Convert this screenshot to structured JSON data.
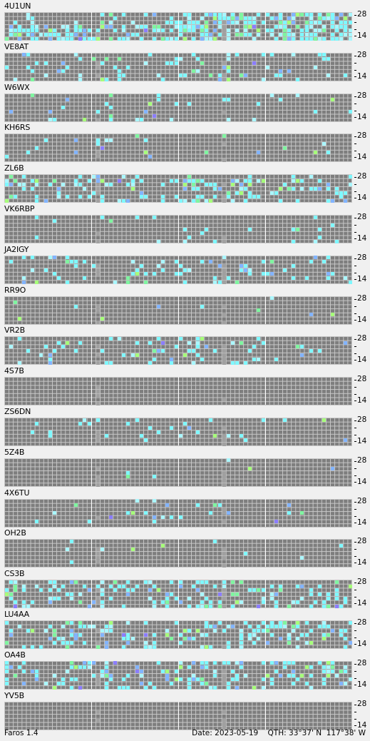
{
  "app": {
    "name": "Faros 1.4"
  },
  "status": {
    "date_label": "Date:",
    "date": "2023-05-19",
    "qth_label": "QTH:",
    "qth": "33°37' N  117°38' W"
  },
  "axis": {
    "top_label": "28",
    "bottom_label": "14"
  },
  "colors": {
    "background": "#f0f0f0",
    "grid": "#7e7e7e",
    "gridline": "#c9c9c9",
    "hour_line": "#ffffff",
    "marker": "#a0a0a0",
    "cyan": "#7ff8ff",
    "light_cyan": "#aaf7ff",
    "blue": "#82b4ff",
    "green": "#7ff5a0",
    "lime": "#a6ff7a",
    "violet": "#8b7dff"
  },
  "stations": [
    {
      "call": "4U1UN",
      "activity": "very-high"
    },
    {
      "call": "VE8AT",
      "activity": "medium"
    },
    {
      "call": "W6WX",
      "activity": "low"
    },
    {
      "call": "KH6RS",
      "activity": "low"
    },
    {
      "call": "ZL6B",
      "activity": "high"
    },
    {
      "call": "VK6RBP",
      "activity": "low"
    },
    {
      "call": "JA2IGY",
      "activity": "medium"
    },
    {
      "call": "RR9O",
      "activity": "very-low"
    },
    {
      "call": "VR2B",
      "activity": "medium"
    },
    {
      "call": "4S7B",
      "activity": "none"
    },
    {
      "call": "ZS6DN",
      "activity": "low"
    },
    {
      "call": "5Z4B",
      "activity": "very-low"
    },
    {
      "call": "4X6TU",
      "activity": "low"
    },
    {
      "call": "OH2B",
      "activity": "very-low"
    },
    {
      "call": "CS3B",
      "activity": "high"
    },
    {
      "call": "LU4AA",
      "activity": "high"
    },
    {
      "call": "OA4B",
      "activity": "high"
    },
    {
      "call": "YV5B",
      "activity": "none"
    }
  ]
}
